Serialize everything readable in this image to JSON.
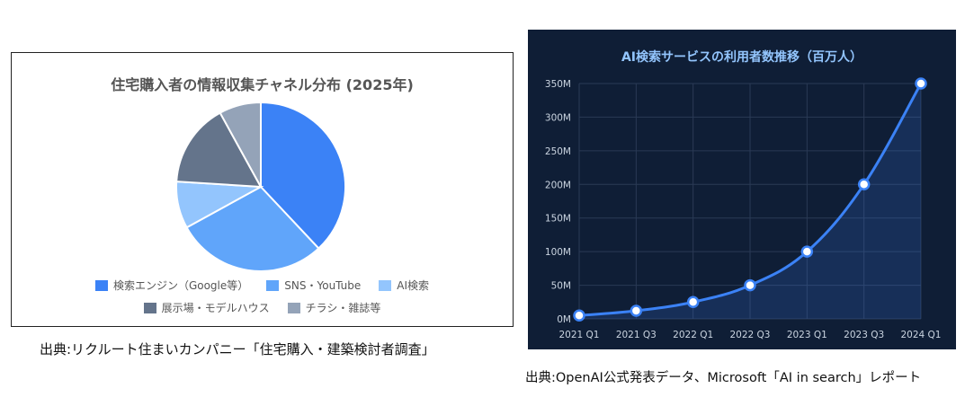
{
  "pie_chart": {
    "title": "住宅購入者の情報収集チャネル分布 (2025年)"
  },
  "line_chart": {
    "title": "AI検索サービスの利用者数推移（百万人）"
  },
  "captions": {
    "left": "出典:リクルート住まいカンパニー「住宅購入・建築検討者調査」",
    "right": "出典:OpenAI公式発表データ、Microsoft「AI in search」レポート"
  },
  "colors": {
    "pie_panel_bg": "#ffffff",
    "line_panel_bg": "#0f1e36",
    "line_color": "#3b82f6"
  },
  "chart_data": [
    {
      "type": "pie",
      "title": "住宅購入者の情報収集チャネル分布 (2025年)",
      "slices": [
        {
          "label": "検索エンジン（Google等）",
          "value": 38,
          "color": "#3b82f6"
        },
        {
          "label": "SNS・YouTube",
          "value": 29,
          "color": "#60a5fa"
        },
        {
          "label": "AI検索",
          "value": 9,
          "color": "#93c5fd"
        },
        {
          "label": "展示場・モデルハウス",
          "value": 16,
          "color": "#64748b"
        },
        {
          "label": "チラシ・雑誌等",
          "value": 8,
          "color": "#94a3b8"
        }
      ],
      "legend_position": "bottom"
    },
    {
      "type": "line",
      "title": "AI検索サービスの利用者数推移（百万人）",
      "categories": [
        "2021 Q1",
        "2021 Q3",
        "2022 Q1",
        "2022 Q3",
        "2023 Q1",
        "2023 Q3",
        "2024 Q1"
      ],
      "series": [
        {
          "values": [
            5,
            12,
            25,
            50,
            100,
            200,
            350
          ]
        }
      ],
      "y_ticks": [
        "0M",
        "50M",
        "100M",
        "150M",
        "200M",
        "250M",
        "300M",
        "350M"
      ],
      "ylim": [
        0,
        350
      ],
      "grid": true,
      "area_fill": true
    }
  ]
}
